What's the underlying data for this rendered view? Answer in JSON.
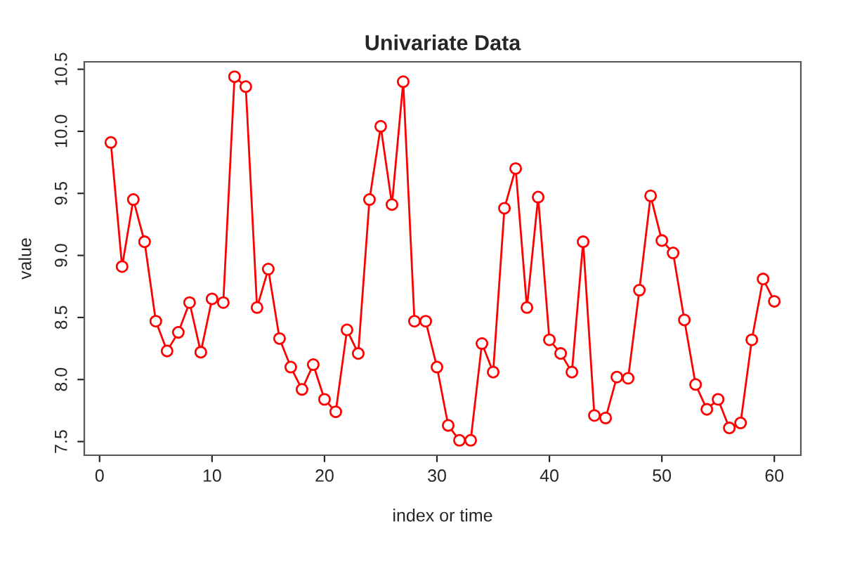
{
  "chart_data": {
    "type": "line",
    "title": "Univariate Data",
    "xlabel": "index or time",
    "ylabel": "value",
    "x": [
      1,
      2,
      3,
      4,
      5,
      6,
      7,
      8,
      9,
      10,
      11,
      12,
      13,
      14,
      15,
      16,
      17,
      18,
      19,
      20,
      21,
      22,
      23,
      24,
      25,
      26,
      27,
      28,
      29,
      30,
      31,
      32,
      33,
      34,
      35,
      36,
      37,
      38,
      39,
      40,
      41,
      42,
      43,
      44,
      45,
      46,
      47,
      48,
      49,
      50,
      51,
      52,
      53,
      54,
      55,
      56,
      57,
      58,
      59,
      60
    ],
    "series": [
      {
        "color": "#ff0000",
        "values": [
          9.91,
          8.91,
          9.45,
          9.11,
          8.47,
          8.23,
          8.38,
          8.62,
          8.22,
          8.65,
          8.62,
          10.44,
          10.36,
          8.58,
          8.89,
          8.33,
          8.1,
          7.92,
          8.12,
          7.84,
          7.74,
          8.4,
          8.21,
          9.45,
          10.04,
          9.41,
          10.4,
          8.47,
          8.47,
          8.1,
          7.63,
          7.51,
          7.51,
          8.29,
          8.06,
          9.38,
          9.7,
          8.58,
          9.47,
          8.32,
          8.21,
          8.06,
          9.11,
          7.71,
          7.69,
          8.02,
          8.01,
          8.72,
          9.48,
          9.12,
          9.02,
          8.48,
          7.96,
          7.76,
          7.84,
          7.61,
          7.65,
          8.32,
          8.81,
          8.63
        ]
      }
    ],
    "xlim": [
      -1.36,
      62.36
    ],
    "ylim": [
      7.39,
      10.56
    ],
    "xticks": [
      0,
      10,
      20,
      30,
      40,
      50,
      60
    ],
    "yticks": [
      {
        "value": 7.5,
        "label": "7.5"
      },
      {
        "value": 8,
        "label": "8.0"
      },
      {
        "value": 8.5,
        "label": "8.5"
      },
      {
        "value": 9,
        "label": "9.0"
      },
      {
        "value": 9.5,
        "label": "9.5"
      },
      {
        "value": 10,
        "label": "10.0"
      },
      {
        "value": 10.5,
        "label": "10.5"
      }
    ],
    "marker": "circle",
    "line_style": "solid",
    "grid": false,
    "legend": false
  }
}
